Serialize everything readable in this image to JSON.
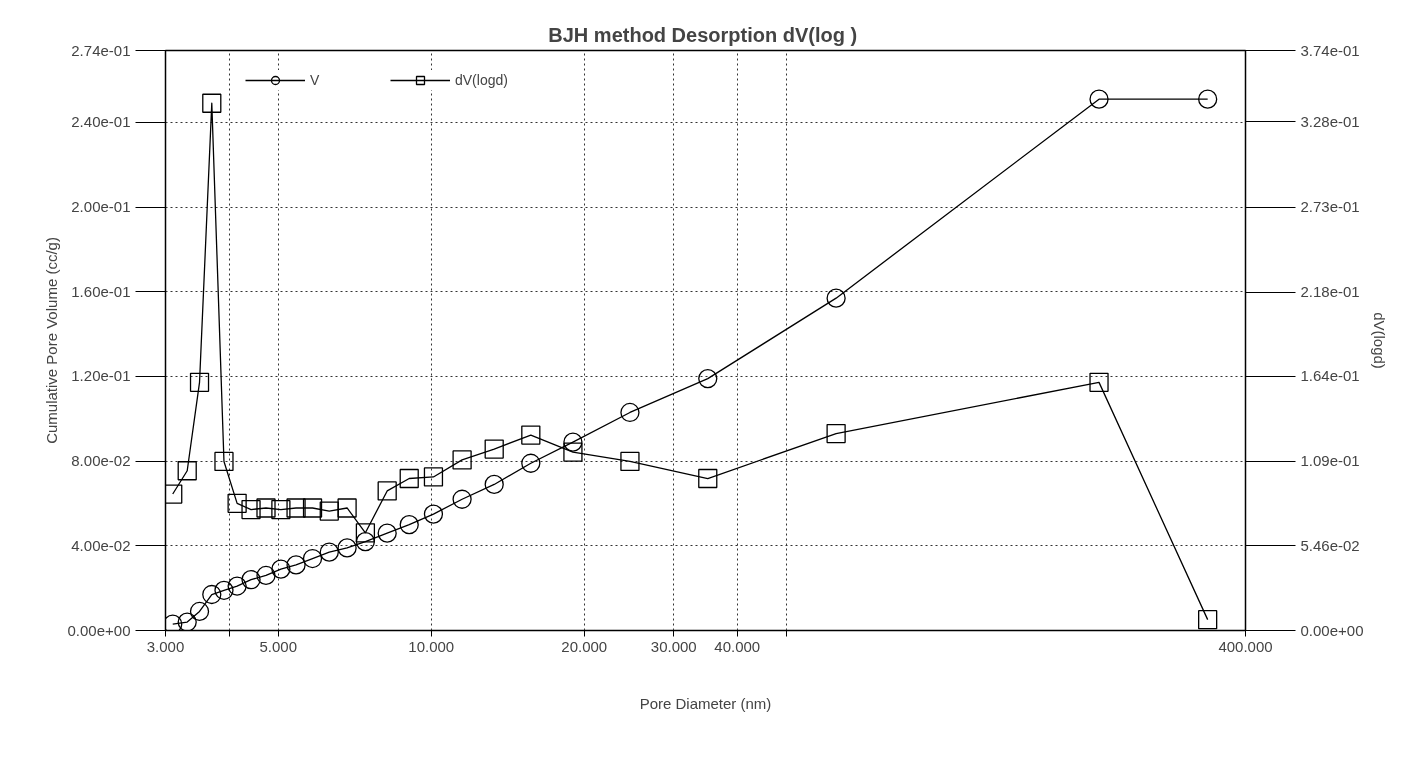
{
  "chart_data": {
    "type": "line",
    "title": "BJH method Desorption  dV(log )",
    "xlabel": "Pore Diameter (nm)",
    "ylabel": "Cumulative Pore Volume (cc/g)",
    "y2label": "dV(logd)",
    "log": "x",
    "x": [
      3.1,
      3.31,
      3.5,
      3.7,
      3.91,
      4.15,
      4.42,
      4.73,
      5.06,
      5.42,
      5.84,
      6.3,
      6.83,
      7.42,
      8.19,
      9.05,
      10.1,
      11.5,
      13.3,
      15.7,
      19.0,
      24.6,
      35.0,
      62.6,
      206,
      337
    ],
    "series": [
      {
        "name": "V",
        "color": "#000000",
        "marker": "circle",
        "values": [
          0.003,
          0.004,
          0.009,
          0.017,
          0.019,
          0.021,
          0.024,
          0.026,
          0.029,
          0.031,
          0.034,
          0.037,
          0.039,
          0.042,
          0.046,
          0.05,
          0.055,
          0.062,
          0.069,
          0.079,
          0.089,
          0.103,
          0.119,
          0.157,
          0.251,
          0.251
        ]
      },
      {
        "name": "dV(logd)",
        "color": "#000000",
        "marker": "square",
        "axis": "y2",
        "values": [
          0.088,
          0.103,
          0.16,
          0.34,
          0.109,
          0.082,
          0.078,
          0.079,
          0.078,
          0.079,
          0.079,
          0.077,
          0.079,
          0.063,
          0.09,
          0.098,
          0.099,
          0.11,
          0.117,
          0.126,
          0.115,
          0.109,
          0.098,
          0.127,
          0.16,
          0.007
        ]
      }
    ],
    "xlim": [
      3,
      400
    ],
    "xticks": [
      {
        "value": 3,
        "label": "3.000"
      },
      {
        "value": 4,
        "label": null
      },
      {
        "value": 5,
        "label": "5.000"
      },
      {
        "value": 10,
        "label": "10.000"
      },
      {
        "value": 20,
        "label": "20.000"
      },
      {
        "value": 30,
        "label": "30.000"
      },
      {
        "value": 40,
        "label": "40.000"
      },
      {
        "value": 50,
        "label": null
      },
      {
        "value": 400,
        "label": "400.000"
      }
    ],
    "ylim": [
      0,
      0.274
    ],
    "yticks": [
      {
        "value": 0,
        "label": "0.00e+00"
      },
      {
        "value": 0.04,
        "label": "4.00e-02"
      },
      {
        "value": 0.08,
        "label": "8.00e-02"
      },
      {
        "value": 0.12,
        "label": "1.20e-01"
      },
      {
        "value": 0.16,
        "label": "1.60e-01"
      },
      {
        "value": 0.2,
        "label": "2.00e-01"
      },
      {
        "value": 0.24,
        "label": "2.40e-01"
      },
      {
        "value": 0.274,
        "label": "2.74e-01"
      }
    ],
    "y2lim": [
      0,
      0.374
    ],
    "y2ticks": [
      {
        "value": 0,
        "label": "0.00e+00"
      },
      {
        "value": 0.0546,
        "label": "5.46e-02"
      },
      {
        "value": 0.109,
        "label": "1.09e-01"
      },
      {
        "value": 0.164,
        "label": "1.64e-01"
      },
      {
        "value": 0.218,
        "label": "2.18e-01"
      },
      {
        "value": 0.273,
        "label": "2.73e-01"
      },
      {
        "value": 0.328,
        "label": "3.28e-01"
      },
      {
        "value": 0.374,
        "label": "3.74e-01"
      }
    ],
    "grid": true,
    "legend": "top left",
    "line_style": "solid"
  }
}
